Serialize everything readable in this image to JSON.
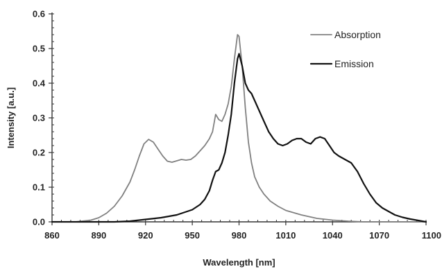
{
  "chart_data": {
    "type": "line",
    "title": "",
    "xlabel": "Wavelength [nm]",
    "ylabel": "Intensity [a.u.]",
    "xlim": [
      860,
      1100
    ],
    "ylim": [
      0,
      0.6
    ],
    "xticks": [
      860,
      890,
      920,
      950,
      980,
      1010,
      1040,
      1070,
      1100
    ],
    "xtick_labels": [
      "860",
      "890",
      "920",
      "950",
      "980",
      "1010",
      "1040",
      "1070",
      "1100"
    ],
    "yticks": [
      0,
      0.1,
      0.2,
      0.3,
      0.4,
      0.5,
      0.6
    ],
    "ytick_labels": [
      "0.0",
      "0.1",
      "0.2",
      "0.3",
      "0.4",
      "0.5",
      "0.6"
    ],
    "grid": false,
    "legend_position": "top-right",
    "series": [
      {
        "name": "Absorption",
        "color": "#808080",
        "points": [
          [
            860,
            0.0
          ],
          [
            875,
            0.0
          ],
          [
            885,
            0.005
          ],
          [
            890,
            0.012
          ],
          [
            895,
            0.025
          ],
          [
            900,
            0.045
          ],
          [
            905,
            0.075
          ],
          [
            910,
            0.115
          ],
          [
            913,
            0.15
          ],
          [
            916,
            0.19
          ],
          [
            919,
            0.225
          ],
          [
            922,
            0.238
          ],
          [
            925,
            0.23
          ],
          [
            928,
            0.21
          ],
          [
            931,
            0.19
          ],
          [
            934,
            0.175
          ],
          [
            937,
            0.172
          ],
          [
            940,
            0.176
          ],
          [
            943,
            0.18
          ],
          [
            946,
            0.178
          ],
          [
            949,
            0.18
          ],
          [
            952,
            0.19
          ],
          [
            955,
            0.205
          ],
          [
            958,
            0.22
          ],
          [
            961,
            0.24
          ],
          [
            963,
            0.26
          ],
          [
            965,
            0.31
          ],
          [
            967,
            0.295
          ],
          [
            969,
            0.29
          ],
          [
            971,
            0.31
          ],
          [
            973,
            0.34
          ],
          [
            975,
            0.39
          ],
          [
            977,
            0.47
          ],
          [
            979,
            0.54
          ],
          [
            980,
            0.535
          ],
          [
            982,
            0.45
          ],
          [
            984,
            0.33
          ],
          [
            986,
            0.23
          ],
          [
            988,
            0.17
          ],
          [
            990,
            0.13
          ],
          [
            993,
            0.1
          ],
          [
            996,
            0.08
          ],
          [
            1000,
            0.06
          ],
          [
            1005,
            0.045
          ],
          [
            1010,
            0.033
          ],
          [
            1020,
            0.02
          ],
          [
            1030,
            0.01
          ],
          [
            1040,
            0.005
          ],
          [
            1050,
            0.002
          ],
          [
            1060,
            0.0
          ],
          [
            1100,
            0.0
          ]
        ]
      },
      {
        "name": "Emission",
        "color": "#111111",
        "points": [
          [
            860,
            0.0
          ],
          [
            900,
            0.0
          ],
          [
            910,
            0.002
          ],
          [
            920,
            0.007
          ],
          [
            930,
            0.012
          ],
          [
            940,
            0.02
          ],
          [
            950,
            0.035
          ],
          [
            955,
            0.05
          ],
          [
            958,
            0.065
          ],
          [
            961,
            0.09
          ],
          [
            963,
            0.12
          ],
          [
            965,
            0.145
          ],
          [
            967,
            0.15
          ],
          [
            969,
            0.17
          ],
          [
            971,
            0.2
          ],
          [
            973,
            0.25
          ],
          [
            975,
            0.31
          ],
          [
            977,
            0.4
          ],
          [
            979,
            0.47
          ],
          [
            980,
            0.485
          ],
          [
            982,
            0.45
          ],
          [
            984,
            0.4
          ],
          [
            986,
            0.38
          ],
          [
            988,
            0.37
          ],
          [
            990,
            0.35
          ],
          [
            993,
            0.32
          ],
          [
            996,
            0.29
          ],
          [
            999,
            0.26
          ],
          [
            1002,
            0.24
          ],
          [
            1005,
            0.225
          ],
          [
            1008,
            0.22
          ],
          [
            1011,
            0.225
          ],
          [
            1014,
            0.235
          ],
          [
            1017,
            0.24
          ],
          [
            1020,
            0.24
          ],
          [
            1023,
            0.23
          ],
          [
            1026,
            0.225
          ],
          [
            1029,
            0.24
          ],
          [
            1032,
            0.245
          ],
          [
            1035,
            0.24
          ],
          [
            1038,
            0.22
          ],
          [
            1041,
            0.2
          ],
          [
            1044,
            0.19
          ],
          [
            1048,
            0.18
          ],
          [
            1052,
            0.17
          ],
          [
            1056,
            0.145
          ],
          [
            1060,
            0.11
          ],
          [
            1064,
            0.08
          ],
          [
            1068,
            0.055
          ],
          [
            1072,
            0.04
          ],
          [
            1076,
            0.03
          ],
          [
            1080,
            0.02
          ],
          [
            1085,
            0.013
          ],
          [
            1090,
            0.008
          ],
          [
            1095,
            0.004
          ],
          [
            1100,
            0.0
          ]
        ]
      }
    ]
  }
}
